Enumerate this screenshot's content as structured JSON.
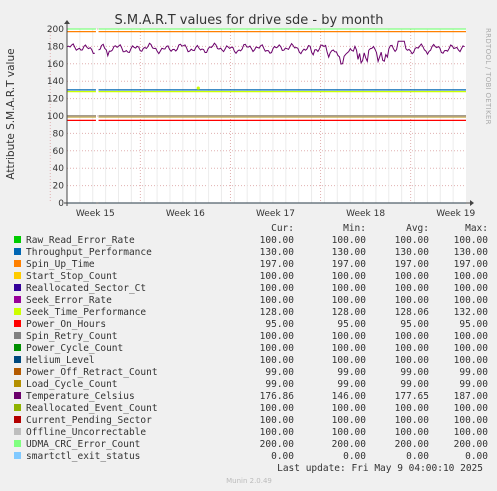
{
  "chart_data": {
    "type": "line",
    "title": "S.M.A.R.T values for drive sde - by month",
    "ylabel": "Attribute S.M.A.R.T value",
    "side_label": "RRDTOOL / TOBI OETIKER",
    "ylim": [
      0,
      200
    ],
    "yticks": [
      0,
      20,
      40,
      60,
      80,
      100,
      120,
      140,
      160,
      180,
      200
    ],
    "xlim": [
      0,
      31
    ],
    "xticks": [
      {
        "label": "Week 15",
        "x": 2.2
      },
      {
        "label": "Week 16",
        "x": 9.2
      },
      {
        "label": "Week 17",
        "x": 16.2
      },
      {
        "label": "Week 18",
        "x": 23.2
      },
      {
        "label": "Week 19",
        "x": 30.2
      }
    ],
    "grid": true,
    "legend_placement": "bottom",
    "columns": [
      "Cur:",
      "Min:",
      "Avg:",
      "Max:"
    ],
    "series": [
      {
        "name": "Raw_Read_Error_Rate",
        "color": "#00cc00",
        "cur": "100.00",
        "min": "100.00",
        "avg": "100.00",
        "max": "100.00",
        "value": 100
      },
      {
        "name": "Throughput_Performance",
        "color": "#0066b3",
        "cur": "130.00",
        "min": "130.00",
        "avg": "130.00",
        "max": "130.00",
        "value": 130
      },
      {
        "name": "Spin_Up_Time",
        "color": "#ff8000",
        "cur": "197.00",
        "min": "197.00",
        "avg": "197.00",
        "max": "197.00",
        "value": 197
      },
      {
        "name": "Start_Stop_Count",
        "color": "#ffcc00",
        "cur": "100.00",
        "min": "100.00",
        "avg": "100.00",
        "max": "100.00",
        "value": 100
      },
      {
        "name": "Reallocated_Sector_Ct",
        "color": "#330099",
        "cur": "100.00",
        "min": "100.00",
        "avg": "100.00",
        "max": "100.00",
        "value": 100
      },
      {
        "name": "Seek_Error_Rate",
        "color": "#990099",
        "cur": "100.00",
        "min": "100.00",
        "avg": "100.00",
        "max": "100.00",
        "value": 100
      },
      {
        "name": "Seek_Time_Performance",
        "color": "#ccff00",
        "cur": "128.00",
        "min": "128.00",
        "avg": "128.06",
        "max": "132.00",
        "value": 128
      },
      {
        "name": "Power_On_Hours",
        "color": "#ff0000",
        "cur": "95.00",
        "min": "95.00",
        "avg": "95.00",
        "max": "95.00",
        "value": 95
      },
      {
        "name": "Spin_Retry_Count",
        "color": "#808080",
        "cur": "100.00",
        "min": "100.00",
        "avg": "100.00",
        "max": "100.00",
        "value": 100
      },
      {
        "name": "Power_Cycle_Count",
        "color": "#008f00",
        "cur": "100.00",
        "min": "100.00",
        "avg": "100.00",
        "max": "100.00",
        "value": 100
      },
      {
        "name": "Helium_Level",
        "color": "#00487d",
        "cur": "100.00",
        "min": "100.00",
        "avg": "100.00",
        "max": "100.00",
        "value": 100
      },
      {
        "name": "Power_Off_Retract_Count",
        "color": "#b35a00",
        "cur": "99.00",
        "min": "99.00",
        "avg": "99.00",
        "max": "99.00",
        "value": 99
      },
      {
        "name": "Load_Cycle_Count",
        "color": "#b38f00",
        "cur": "99.00",
        "min": "99.00",
        "avg": "99.00",
        "max": "99.00",
        "value": 99
      },
      {
        "name": "Temperature_Celsius",
        "color": "#6b006b",
        "cur": "176.86",
        "min": "146.00",
        "avg": "177.65",
        "max": "187.00",
        "value": 177
      },
      {
        "name": "Reallocated_Event_Count",
        "color": "#8fb300",
        "cur": "100.00",
        "min": "100.00",
        "avg": "100.00",
        "max": "100.00",
        "value": 100
      },
      {
        "name": "Current_Pending_Sector",
        "color": "#b30000",
        "cur": "100.00",
        "min": "100.00",
        "avg": "100.00",
        "max": "100.00",
        "value": 100
      },
      {
        "name": "Offline_Uncorrectable",
        "color": "#bebebe",
        "cur": "100.00",
        "min": "100.00",
        "avg": "100.00",
        "max": "100.00",
        "value": 100
      },
      {
        "name": "UDMA_CRC_Error_Count",
        "color": "#80ff80",
        "cur": "200.00",
        "min": "200.00",
        "avg": "200.00",
        "max": "200.00",
        "value": 200
      },
      {
        "name": "smartctl_exit_status",
        "color": "#80c9ff",
        "cur": "0.00",
        "min": "0.00",
        "avg": "0.00",
        "max": "0.00",
        "value": 0
      }
    ],
    "last_update": "Last update: Fri May  9 04:00:10 2025",
    "footer": "Munin 2.0.49"
  }
}
